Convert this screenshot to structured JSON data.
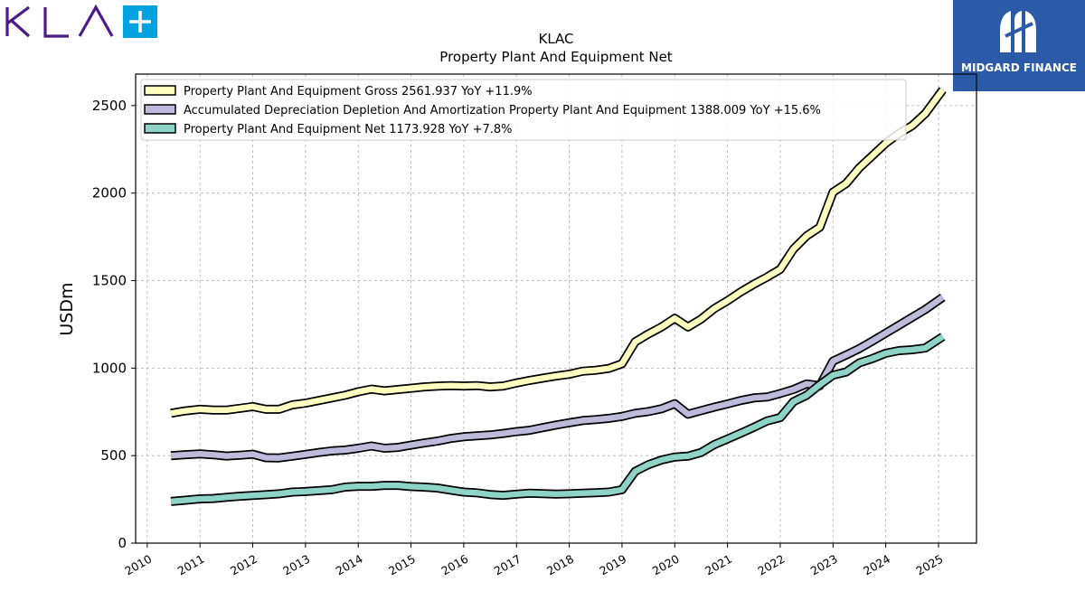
{
  "brand": {
    "name": "KLA"
  },
  "partner": {
    "name": "MIDGARD FINANCE"
  },
  "colors": {
    "gross": "#ffffc0",
    "depreciation": "#bebadb",
    "net": "#8ed3c7",
    "outline": "#000000",
    "brand_purple": "#4b1a86",
    "brand_cyan": "#00a3e0",
    "partner_blue": "#2a5aa8"
  },
  "chart_data": {
    "type": "line",
    "title": [
      "KLAC",
      "Property Plant And Equipment Net"
    ],
    "ylabel": "USDm",
    "xlabel": "",
    "ylim": [
      0,
      2680
    ],
    "xlim": [
      2009.78,
      2025.72
    ],
    "yticks": [
      0,
      500,
      1000,
      1500,
      2000,
      2500
    ],
    "xticks": [
      2010,
      2011,
      2012,
      2013,
      2014,
      2015,
      2016,
      2017,
      2018,
      2019,
      2020,
      2021,
      2022,
      2023,
      2024,
      2025
    ],
    "grid": true,
    "legend_position": "top-left",
    "series": [
      {
        "name": "Property Plant And Equipment Gross  2561.937 YoY +11.9%",
        "color_key": "gross",
        "points": [
          [
            2010.45,
            742
          ],
          [
            2010.7,
            755
          ],
          [
            2011.0,
            765
          ],
          [
            2011.25,
            760
          ],
          [
            2011.5,
            760
          ],
          [
            2011.75,
            770
          ],
          [
            2012.0,
            780
          ],
          [
            2012.25,
            765
          ],
          [
            2012.5,
            765
          ],
          [
            2012.75,
            790
          ],
          [
            2013.0,
            800
          ],
          [
            2013.25,
            815
          ],
          [
            2013.5,
            830
          ],
          [
            2013.75,
            845
          ],
          [
            2014.0,
            865
          ],
          [
            2014.25,
            880
          ],
          [
            2014.5,
            870
          ],
          [
            2014.75,
            878
          ],
          [
            2015.0,
            885
          ],
          [
            2015.25,
            893
          ],
          [
            2015.5,
            897
          ],
          [
            2015.75,
            900
          ],
          [
            2016.0,
            898
          ],
          [
            2016.25,
            900
          ],
          [
            2016.5,
            893
          ],
          [
            2016.75,
            898
          ],
          [
            2017.0,
            915
          ],
          [
            2017.25,
            930
          ],
          [
            2017.5,
            943
          ],
          [
            2017.75,
            955
          ],
          [
            2018.0,
            965
          ],
          [
            2018.25,
            982
          ],
          [
            2018.5,
            988
          ],
          [
            2018.75,
            998
          ],
          [
            2019.0,
            1025
          ],
          [
            2019.25,
            1150
          ],
          [
            2019.5,
            1195
          ],
          [
            2019.75,
            1235
          ],
          [
            2020.0,
            1285
          ],
          [
            2020.25,
            1235
          ],
          [
            2020.5,
            1280
          ],
          [
            2020.75,
            1340
          ],
          [
            2021.0,
            1385
          ],
          [
            2021.25,
            1435
          ],
          [
            2021.5,
            1480
          ],
          [
            2021.75,
            1520
          ],
          [
            2022.0,
            1565
          ],
          [
            2022.25,
            1680
          ],
          [
            2022.5,
            1755
          ],
          [
            2022.75,
            1805
          ],
          [
            2023.0,
            2005
          ],
          [
            2023.25,
            2055
          ],
          [
            2023.5,
            2145
          ],
          [
            2023.75,
            2215
          ],
          [
            2024.0,
            2285
          ],
          [
            2024.25,
            2340
          ],
          [
            2024.5,
            2385
          ],
          [
            2024.75,
            2455
          ],
          [
            2025.08,
            2590
          ]
        ]
      },
      {
        "name": "Accumulated Depreciation Depletion And Amortization Property Plant And Equipment  1388.009 YoY +15.6%",
        "color_key": "depreciation",
        "points": [
          [
            2010.45,
            500
          ],
          [
            2010.7,
            505
          ],
          [
            2011.0,
            510
          ],
          [
            2011.25,
            505
          ],
          [
            2011.5,
            498
          ],
          [
            2011.75,
            502
          ],
          [
            2012.0,
            508
          ],
          [
            2012.25,
            488
          ],
          [
            2012.5,
            487
          ],
          [
            2012.75,
            497
          ],
          [
            2013.0,
            507
          ],
          [
            2013.25,
            518
          ],
          [
            2013.5,
            527
          ],
          [
            2013.75,
            532
          ],
          [
            2014.0,
            542
          ],
          [
            2014.25,
            555
          ],
          [
            2014.5,
            542
          ],
          [
            2014.75,
            547
          ],
          [
            2015.0,
            560
          ],
          [
            2015.25,
            572
          ],
          [
            2015.5,
            583
          ],
          [
            2015.75,
            598
          ],
          [
            2016.0,
            608
          ],
          [
            2016.25,
            613
          ],
          [
            2016.5,
            618
          ],
          [
            2016.75,
            627
          ],
          [
            2017.0,
            637
          ],
          [
            2017.25,
            645
          ],
          [
            2017.5,
            660
          ],
          [
            2017.75,
            675
          ],
          [
            2018.0,
            688
          ],
          [
            2018.25,
            700
          ],
          [
            2018.5,
            706
          ],
          [
            2018.75,
            713
          ],
          [
            2019.0,
            724
          ],
          [
            2019.25,
            742
          ],
          [
            2019.5,
            752
          ],
          [
            2019.75,
            768
          ],
          [
            2020.0,
            797
          ],
          [
            2020.25,
            737
          ],
          [
            2020.5,
            757
          ],
          [
            2020.75,
            777
          ],
          [
            2021.0,
            795
          ],
          [
            2021.25,
            815
          ],
          [
            2021.5,
            830
          ],
          [
            2021.75,
            835
          ],
          [
            2022.0,
            855
          ],
          [
            2022.25,
            878
          ],
          [
            2022.5,
            910
          ],
          [
            2022.75,
            900
          ],
          [
            2023.0,
            1040
          ],
          [
            2023.25,
            1075
          ],
          [
            2023.5,
            1112
          ],
          [
            2023.75,
            1155
          ],
          [
            2024.0,
            1200
          ],
          [
            2024.25,
            1245
          ],
          [
            2024.5,
            1290
          ],
          [
            2024.75,
            1335
          ],
          [
            2025.08,
            1405
          ]
        ]
      },
      {
        "name": "Property Plant And Equipment Net  1173.928 YoY +7.8%",
        "color_key": "net",
        "points": [
          [
            2010.45,
            238
          ],
          [
            2010.7,
            245
          ],
          [
            2011.0,
            253
          ],
          [
            2011.25,
            255
          ],
          [
            2011.5,
            262
          ],
          [
            2011.75,
            268
          ],
          [
            2012.0,
            272
          ],
          [
            2012.25,
            277
          ],
          [
            2012.5,
            282
          ],
          [
            2012.75,
            292
          ],
          [
            2013.0,
            295
          ],
          [
            2013.25,
            300
          ],
          [
            2013.5,
            305
          ],
          [
            2013.75,
            320
          ],
          [
            2014.0,
            325
          ],
          [
            2014.25,
            325
          ],
          [
            2014.5,
            330
          ],
          [
            2014.75,
            330
          ],
          [
            2015.0,
            323
          ],
          [
            2015.25,
            320
          ],
          [
            2015.5,
            315
          ],
          [
            2015.75,
            303
          ],
          [
            2016.0,
            292
          ],
          [
            2016.25,
            287
          ],
          [
            2016.5,
            278
          ],
          [
            2016.75,
            273
          ],
          [
            2017.0,
            280
          ],
          [
            2017.25,
            285
          ],
          [
            2017.5,
            283
          ],
          [
            2017.75,
            280
          ],
          [
            2018.0,
            282
          ],
          [
            2018.25,
            285
          ],
          [
            2018.5,
            288
          ],
          [
            2018.75,
            292
          ],
          [
            2019.0,
            305
          ],
          [
            2019.25,
            410
          ],
          [
            2019.5,
            448
          ],
          [
            2019.75,
            475
          ],
          [
            2020.0,
            492
          ],
          [
            2020.25,
            497
          ],
          [
            2020.5,
            518
          ],
          [
            2020.75,
            563
          ],
          [
            2021.0,
            595
          ],
          [
            2021.25,
            628
          ],
          [
            2021.5,
            662
          ],
          [
            2021.75,
            698
          ],
          [
            2022.0,
            718
          ],
          [
            2022.25,
            808
          ],
          [
            2022.5,
            845
          ],
          [
            2022.75,
            905
          ],
          [
            2023.0,
            960
          ],
          [
            2023.25,
            978
          ],
          [
            2023.5,
            1030
          ],
          [
            2023.75,
            1055
          ],
          [
            2024.0,
            1085
          ],
          [
            2024.25,
            1100
          ],
          [
            2024.5,
            1105
          ],
          [
            2024.75,
            1115
          ],
          [
            2025.08,
            1180
          ]
        ]
      }
    ]
  }
}
